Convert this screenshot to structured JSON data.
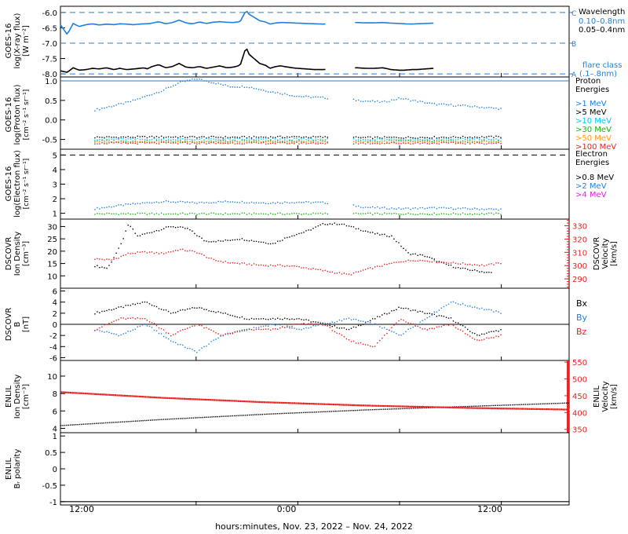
{
  "figure": {
    "x_caption": "hours:minutes, Nov. 23, 2022 – Nov. 24, 2022",
    "time_ticks": [
      "12:00",
      "0:00",
      "12:00"
    ]
  },
  "colors": {
    "black": "#000000",
    "blue": "#1f7fe0",
    "cyan": "#00c8ff",
    "green": "#1ab01a",
    "orange": "#ff9a1a",
    "red": "#e82020",
    "magenta": "#e020e0"
  },
  "chart_data": [
    {
      "id": "xray",
      "type": "line",
      "ylabel": [
        "GOES-16",
        "log(X-ray flux)",
        "[W m⁻²]"
      ],
      "ylim": [
        -8.1,
        -5.8
      ],
      "yticks": [
        -6.0,
        -6.5,
        -7.0,
        -7.5,
        -8.0
      ],
      "flare_levels": [
        {
          "class": "C",
          "value": -6.0
        },
        {
          "class": "B",
          "value": -7.0
        },
        {
          "class": "A",
          "value": -8.0
        }
      ],
      "legend": {
        "title": "Wavelength",
        "entries": [
          "0.10–0.8nm",
          "0.05–0.4nm"
        ],
        "note": [
          "flare class",
          "(.1–.8nm)"
        ]
      },
      "series": [
        {
          "name": "0.10–0.8nm",
          "color": "#1f7fe0",
          "x": [
            -4,
            -3.2,
            -2.5,
            -1.8,
            -1.0,
            -0.2,
            0.6,
            1.4,
            2.0,
            2.3,
            3.0,
            3.8,
            4.6,
            5.3,
            5.9,
            6.2,
            6.8,
            7.6,
            8.4,
            9.2,
            10,
            10.8,
            11.6,
            12.4,
            13.2,
            14,
            14.8,
            15.6,
            16.4,
            17.2,
            17.9,
            18.2,
            19.5,
            20.2,
            20.7,
            21.4,
            22.0,
            22.4,
            23.3,
            24.0,
            25.0,
            26.0,
            27.0,
            28.0,
            29.0,
            30.0,
            31.0,
            32.0,
            33.0,
            34.0,
            35.0,
            36.0,
            36.6,
            37.4,
            38.0,
            39.0,
            40.0
          ],
          "y": [
            -6.4,
            -6.72,
            -6.36,
            -6.46,
            -6.4,
            -6.37,
            -6.41,
            -6.38,
            -6.39,
            -6.4,
            -6.37,
            -6.38,
            -6.4,
            -6.38,
            -6.37,
            -6.37,
            -6.35,
            -6.3,
            -6.37,
            -6.33,
            -6.25,
            -6.34,
            -6.37,
            -6.31,
            -6.36,
            -6.32,
            -6.3,
            -6.32,
            -6.33,
            -6.3,
            -5.93,
            -6.05,
            -6.27,
            -6.31,
            -6.38,
            -6.34,
            -6.33,
            -6.33,
            -6.34,
            -6.35,
            -6.36,
            -6.37,
            -6.38,
            -6.37,
            -6.36,
            -6.33,
            -6.33,
            -6.34,
            -6.34,
            -6.33,
            -6.35,
            -6.36,
            -6.37,
            -6.38,
            -6.37,
            -6.36,
            -6.35
          ]
        },
        {
          "name": "0.05–0.4nm",
          "color": "#000000",
          "x": [
            -4,
            -3.2,
            -2.5,
            -1.8,
            -1.0,
            -0.2,
            0.6,
            1.4,
            2.0,
            2.3,
            3.0,
            3.8,
            4.6,
            5.3,
            5.9,
            6.2,
            6.8,
            7.6,
            8.4,
            9.2,
            10,
            10.8,
            11.6,
            12.4,
            13.2,
            14,
            14.8,
            15.6,
            16.4,
            17.2,
            17.9,
            18.2,
            19.5,
            20.2,
            20.7,
            21.4,
            22.0,
            22.4,
            23.3,
            24.0,
            25.0,
            26.0,
            27.0,
            28.0,
            29.0,
            30.0,
            31.0,
            32.0,
            33.0,
            34.0,
            35.0,
            36.0,
            36.6,
            37.4,
            38.0,
            39.0,
            40.0
          ],
          "y": [
            -7.9,
            -7.95,
            -7.8,
            -7.88,
            -7.86,
            -7.82,
            -7.84,
            -7.8,
            -7.84,
            -7.86,
            -7.82,
            -7.86,
            -7.84,
            -7.82,
            -7.8,
            -7.84,
            -7.76,
            -7.7,
            -7.8,
            -7.76,
            -7.66,
            -7.78,
            -7.8,
            -7.76,
            -7.82,
            -7.78,
            -7.74,
            -7.8,
            -7.78,
            -7.72,
            -7.12,
            -7.35,
            -7.66,
            -7.72,
            -7.82,
            -7.76,
            -7.74,
            -7.76,
            -7.8,
            -7.82,
            -7.84,
            -7.86,
            -7.86,
            -7.84,
            -7.82,
            -7.8,
            -7.8,
            -7.82,
            -7.82,
            -7.8,
            -7.86,
            -7.88,
            -7.88,
            -7.86,
            -7.86,
            -7.84,
            -7.82
          ]
        }
      ],
      "gaps": [
        [
          27.5,
          30.5
        ]
      ]
    },
    {
      "id": "proton",
      "type": "scatter",
      "ylabel": [
        "GOES-16",
        "log(Proton flux)",
        "[cm⁻² s⁻¹ sr⁻¹]"
      ],
      "ylim": [
        -0.75,
        1.1
      ],
      "yticks": [
        1.0,
        0.5,
        0.0,
        -0.5
      ],
      "legend": {
        "title": [
          "Proton",
          "Energies"
        ],
        "entries": [
          ">1 MeV",
          ">5 MeV",
          ">10 MeV",
          ">30 MeV",
          ">50 MeV",
          ">100 MeV"
        ]
      },
      "series": [
        {
          "name": ">1 MeV",
          "color": "#1f7fe0",
          "x": [
            0,
            4,
            8,
            10,
            12,
            14,
            16,
            18,
            20,
            24,
            28,
            32,
            34,
            36,
            40,
            44,
            48
          ],
          "y": [
            0.25,
            0.45,
            0.75,
            0.95,
            1.05,
            0.95,
            0.85,
            0.85,
            0.75,
            0.6,
            0.55,
            0.48,
            0.45,
            0.55,
            0.4,
            0.35,
            0.28
          ]
        },
        {
          "name": ">5 MeV",
          "color": "#000000",
          "x": [
            0,
            8,
            16,
            24,
            32,
            40,
            48
          ],
          "y": [
            -0.45,
            -0.44,
            -0.45,
            -0.44,
            -0.46,
            -0.45,
            -0.44
          ]
        },
        {
          "name": ">10 MeV",
          "color": "#00c8ff",
          "x": [
            0,
            8,
            16,
            24,
            32,
            40,
            48
          ],
          "y": [
            -0.5,
            -0.5,
            -0.5,
            -0.5,
            -0.5,
            -0.5,
            -0.5
          ]
        },
        {
          "name": ">30 MeV",
          "color": "#1ab01a",
          "x": [
            0,
            8,
            16,
            24,
            32,
            40,
            48
          ],
          "y": [
            -0.55,
            -0.55,
            -0.55,
            -0.55,
            -0.55,
            -0.55,
            -0.55
          ]
        },
        {
          "name": ">50 MeV",
          "color": "#ff9a1a",
          "x": [
            0,
            8,
            16,
            24,
            32,
            40,
            48
          ],
          "y": [
            -0.57,
            -0.57,
            -0.57,
            -0.57,
            -0.57,
            -0.57,
            -0.57
          ]
        },
        {
          "name": ">100 MeV",
          "color": "#e82020",
          "x": [
            0,
            8,
            16,
            24,
            32,
            40,
            48
          ],
          "y": [
            -0.6,
            -0.6,
            -0.6,
            -0.6,
            -0.6,
            -0.6,
            -0.6
          ]
        }
      ],
      "gaps": [
        [
          -99,
          -2.5
        ],
        [
          27.5,
          30.5
        ]
      ]
    },
    {
      "id": "electron",
      "type": "scatter",
      "ylabel": [
        "GOES-16",
        "log(Electron flux)",
        "[cm⁻² s⁻¹ sr⁻¹]"
      ],
      "ylim": [
        0.6,
        5.4
      ],
      "yticks": [
        5,
        4,
        3,
        2,
        1
      ],
      "reference_line": 5.0,
      "legend": {
        "title": [
          "Electron",
          "Energies"
        ],
        "entries": [
          ">0.8 MeV",
          ">2 MeV",
          ">4 MeV"
        ]
      },
      "series": [
        {
          "name": ">2 MeV",
          "color": "#1f7fe0",
          "x": [
            0,
            4,
            8,
            12,
            16,
            20,
            24,
            28,
            32,
            36,
            40,
            44,
            48
          ],
          "y": [
            1.3,
            1.6,
            1.8,
            1.7,
            1.8,
            1.7,
            1.75,
            1.7,
            1.4,
            1.3,
            1.35,
            1.3,
            1.25
          ]
        },
        {
          "name": ">0.8 MeV",
          "color": "#1ab01a",
          "x": [
            0,
            12,
            24,
            36,
            48
          ],
          "y": [
            0.95,
            0.95,
            0.95,
            0.95,
            0.95
          ]
        }
      ],
      "gaps": [
        [
          -99,
          -2.5
        ],
        [
          27.5,
          30.5
        ]
      ]
    },
    {
      "id": "dscovr_plasma",
      "type": "scatter",
      "ylabel": [
        "DSCOVR",
        "Ion Density",
        "[cm⁻³]"
      ],
      "ylim": [
        5,
        33
      ],
      "yticks": [
        30,
        25,
        20,
        15,
        10
      ],
      "ylabel_right": [
        "DSCOVR",
        "Velocity",
        "[km/s]"
      ],
      "ylim_right": [
        283,
        335
      ],
      "yticks_right": [
        330,
        320,
        310,
        300,
        290
      ],
      "series": [
        {
          "name": "Density",
          "color": "#000000",
          "axis": "left",
          "x": [
            0,
            1.5,
            3,
            4,
            5,
            7,
            9,
            11,
            13,
            15,
            17,
            19,
            21,
            23,
            25,
            27,
            29,
            31,
            33,
            35,
            37,
            39,
            41,
            43,
            45,
            47
          ],
          "y": [
            14,
            13,
            22,
            31,
            26,
            28,
            30,
            29,
            24,
            24,
            25,
            24,
            23,
            26,
            28,
            31,
            31,
            29,
            27,
            26,
            19,
            18,
            15,
            13,
            12,
            11
          ]
        },
        {
          "name": "Velocity",
          "color": "#e82020",
          "axis": "right",
          "x": [
            0,
            2,
            4,
            6,
            8,
            10,
            12,
            14,
            16,
            18,
            20,
            22,
            24,
            26,
            28,
            30,
            32,
            34,
            36,
            38,
            40,
            42,
            44,
            46,
            48
          ],
          "y": [
            305,
            304,
            309,
            310,
            309,
            312,
            310,
            304,
            302,
            301,
            300,
            300,
            299,
            297,
            295,
            293,
            297,
            300,
            303,
            304,
            303,
            302,
            301,
            300,
            302
          ]
        }
      ]
    },
    {
      "id": "dscovr_mag",
      "type": "scatter",
      "ylabel": [
        "DSCOVR",
        "B",
        "[nT]"
      ],
      "ylim": [
        -6.5,
        6.5
      ],
      "yticks": [
        6,
        4,
        2,
        0,
        -2,
        -4,
        -6
      ],
      "legend": {
        "entries": [
          "Bx",
          "By",
          "Bz"
        ]
      },
      "series": [
        {
          "name": "Bx",
          "color": "#000000",
          "x": [
            0,
            3,
            6,
            9,
            12,
            15,
            18,
            21,
            24,
            27,
            30,
            33,
            36,
            39,
            42,
            45,
            48
          ],
          "y": [
            2,
            3,
            4,
            2,
            3,
            2,
            1,
            1,
            1,
            0,
            -1,
            1,
            3,
            2,
            1,
            -2,
            -1
          ]
        },
        {
          "name": "By",
          "color": "#1f7fe0",
          "x": [
            0,
            3,
            6,
            9,
            12,
            15,
            18,
            21,
            24,
            27,
            30,
            33,
            36,
            39,
            42,
            45,
            48
          ],
          "y": [
            -1,
            -2,
            0,
            -3,
            -5,
            -2,
            -1,
            0,
            -1,
            0,
            1,
            0,
            -2,
            1,
            4,
            3,
            2
          ]
        },
        {
          "name": "Bz",
          "color": "#e82020",
          "x": [
            0,
            3,
            6,
            9,
            12,
            15,
            18,
            21,
            24,
            27,
            30,
            33,
            36,
            39,
            42,
            45,
            48
          ],
          "y": [
            -1,
            1,
            1,
            -2,
            0,
            -2,
            -1,
            -1,
            0,
            0,
            -3,
            -4,
            1,
            -1,
            0,
            -3,
            -2
          ]
        }
      ]
    },
    {
      "id": "enlil_plasma",
      "type": "line",
      "ylabel": [
        "ENLIL",
        "Ion Density",
        "[cm⁻³]"
      ],
      "ylim": [
        3.5,
        11.8
      ],
      "yticks": [
        10,
        8,
        6,
        4
      ],
      "ylabel_right": [
        "ENLIL",
        "Velocity",
        "[km/s]"
      ],
      "ylim_right": [
        340,
        555
      ],
      "yticks_right": [
        550,
        500,
        450,
        400,
        350
      ],
      "series": [
        {
          "name": "Density",
          "color": "#000000",
          "axis": "left",
          "x": [
            -4,
            8,
            20,
            32,
            44,
            56
          ],
          "y": [
            4.3,
            5.0,
            5.6,
            6.1,
            6.5,
            6.9
          ]
        },
        {
          "name": "Velocity",
          "color": "#e82020",
          "axis": "right",
          "x": [
            -4,
            8,
            20,
            32,
            44,
            56
          ],
          "y": [
            460,
            443,
            430,
            420,
            413,
            408
          ]
        }
      ]
    },
    {
      "id": "enlil_polarity",
      "type": "line",
      "ylabel": [
        "ENLIL",
        "Bᵣ polarity"
      ],
      "ylim": [
        -1.1,
        1.1
      ],
      "yticks": [
        1.0,
        0.5,
        0.0,
        -0.5,
        -1.0
      ],
      "series": [
        {
          "name": "polarity",
          "color": "#000000",
          "x": [
            -4,
            56
          ],
          "y": [
            -1.0,
            -1.0
          ]
        }
      ]
    }
  ]
}
